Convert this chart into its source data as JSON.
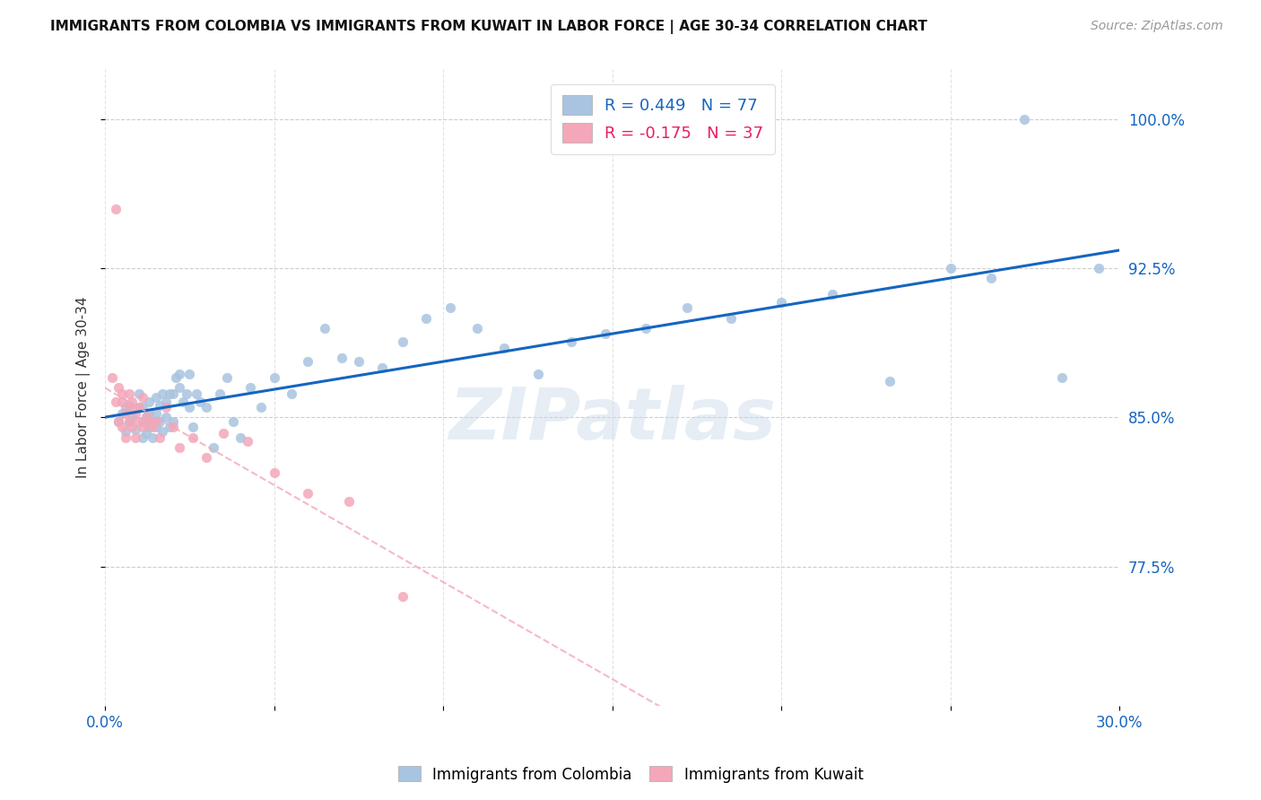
{
  "title": "IMMIGRANTS FROM COLOMBIA VS IMMIGRANTS FROM KUWAIT IN LABOR FORCE | AGE 30-34 CORRELATION CHART",
  "source": "Source: ZipAtlas.com",
  "ylabel": "In Labor Force | Age 30-34",
  "xlim": [
    0.0,
    0.3
  ],
  "ylim": [
    0.705,
    1.025
  ],
  "xtick_labels": [
    "0.0%",
    "",
    "",
    "",
    "",
    "",
    "30.0%"
  ],
  "xtick_values": [
    0.0,
    0.05,
    0.1,
    0.15,
    0.2,
    0.25,
    0.3
  ],
  "ytick_labels": [
    "77.5%",
    "85.0%",
    "92.5%",
    "100.0%"
  ],
  "ytick_values": [
    0.775,
    0.85,
    0.925,
    1.0
  ],
  "colombia_color": "#a8c4e0",
  "kuwait_color": "#f4a7b9",
  "colombia_line_color": "#1565c0",
  "kuwait_line_color": "#f4a7b9",
  "R_colombia": 0.449,
  "N_colombia": 77,
  "R_kuwait": -0.175,
  "N_kuwait": 37,
  "colombia_scatter_x": [
    0.004,
    0.005,
    0.006,
    0.006,
    0.007,
    0.007,
    0.008,
    0.009,
    0.01,
    0.01,
    0.011,
    0.011,
    0.011,
    0.012,
    0.012,
    0.013,
    0.013,
    0.013,
    0.014,
    0.014,
    0.015,
    0.015,
    0.015,
    0.016,
    0.016,
    0.017,
    0.017,
    0.018,
    0.018,
    0.019,
    0.019,
    0.02,
    0.02,
    0.021,
    0.022,
    0.022,
    0.023,
    0.024,
    0.025,
    0.025,
    0.026,
    0.027,
    0.028,
    0.03,
    0.032,
    0.034,
    0.036,
    0.038,
    0.04,
    0.043,
    0.046,
    0.05,
    0.055,
    0.06,
    0.065,
    0.07,
    0.075,
    0.082,
    0.088,
    0.095,
    0.102,
    0.11,
    0.118,
    0.128,
    0.138,
    0.148,
    0.16,
    0.172,
    0.185,
    0.2,
    0.215,
    0.232,
    0.25,
    0.262,
    0.272,
    0.283,
    0.294
  ],
  "colombia_scatter_y": [
    0.848,
    0.852,
    0.855,
    0.843,
    0.848,
    0.856,
    0.85,
    0.844,
    0.855,
    0.862,
    0.84,
    0.848,
    0.855,
    0.842,
    0.85,
    0.845,
    0.852,
    0.858,
    0.84,
    0.848,
    0.852,
    0.86,
    0.845,
    0.848,
    0.856,
    0.843,
    0.862,
    0.85,
    0.858,
    0.845,
    0.862,
    0.848,
    0.862,
    0.87,
    0.865,
    0.872,
    0.858,
    0.862,
    0.872,
    0.855,
    0.845,
    0.862,
    0.858,
    0.855,
    0.835,
    0.862,
    0.87,
    0.848,
    0.84,
    0.865,
    0.855,
    0.87,
    0.862,
    0.878,
    0.895,
    0.88,
    0.878,
    0.875,
    0.888,
    0.9,
    0.905,
    0.895,
    0.885,
    0.872,
    0.888,
    0.892,
    0.895,
    0.905,
    0.9,
    0.908,
    0.912,
    0.868,
    0.925,
    0.92,
    1.0,
    0.87,
    0.925
  ],
  "kuwait_scatter_x": [
    0.002,
    0.003,
    0.003,
    0.004,
    0.004,
    0.005,
    0.005,
    0.005,
    0.006,
    0.006,
    0.007,
    0.007,
    0.007,
    0.008,
    0.008,
    0.009,
    0.009,
    0.01,
    0.01,
    0.011,
    0.011,
    0.012,
    0.013,
    0.014,
    0.015,
    0.016,
    0.018,
    0.02,
    0.022,
    0.026,
    0.03,
    0.035,
    0.042,
    0.05,
    0.06,
    0.072,
    0.088
  ],
  "kuwait_scatter_y": [
    0.87,
    0.955,
    0.858,
    0.865,
    0.848,
    0.858,
    0.862,
    0.845,
    0.852,
    0.84,
    0.855,
    0.848,
    0.862,
    0.858,
    0.845,
    0.852,
    0.84,
    0.848,
    0.855,
    0.845,
    0.86,
    0.85,
    0.848,
    0.845,
    0.848,
    0.84,
    0.855,
    0.845,
    0.835,
    0.84,
    0.83,
    0.842,
    0.838,
    0.822,
    0.812,
    0.808,
    0.76
  ],
  "watermark": "ZIPatlas",
  "background_color": "#ffffff",
  "grid_color": "#c8c8c8"
}
